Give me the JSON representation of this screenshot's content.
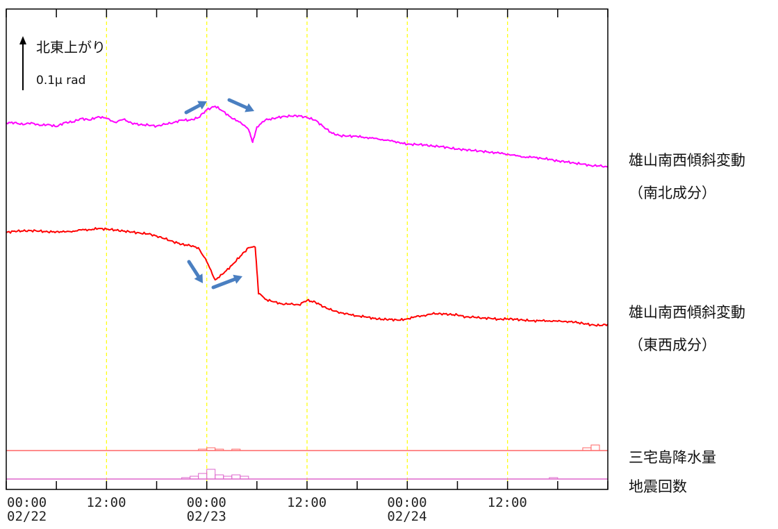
{
  "chart_data": {
    "type": "line",
    "x_unit": "hours",
    "xlim": [
      0,
      72
    ],
    "x_ticks": [
      {
        "x": 0,
        "time": "00:00",
        "date": "02/22"
      },
      {
        "x": 12,
        "time": "12:00",
        "date": ""
      },
      {
        "x": 24,
        "time": "00:00",
        "date": "02/23"
      },
      {
        "x": 36,
        "time": "12:00",
        "date": ""
      },
      {
        "x": 48,
        "time": "00:00",
        "date": "02/24"
      },
      {
        "x": 60,
        "time": "12:00",
        "date": ""
      }
    ],
    "grid_x": [
      12,
      24,
      36,
      48,
      60
    ],
    "minor_ticks_hours": 6,
    "grid_color": "#ffff00",
    "scale_indicator": {
      "direction_label": "北東上がり",
      "magnitude_label": "0.1μ rad"
    },
    "series": [
      {
        "name": "雄山南西傾斜変動",
        "sub_name": "（南北成分）",
        "color": "#ff00ff",
        "points": [
          [
            0,
            -0.49
          ],
          [
            1,
            -0.46
          ],
          [
            2,
            -0.63
          ],
          [
            3,
            -0.46
          ],
          [
            4,
            -0.7
          ],
          [
            5,
            -0.6
          ],
          [
            6,
            -0.78
          ],
          [
            7,
            -0.46
          ],
          [
            8,
            -0.41
          ],
          [
            9,
            -0.14
          ],
          [
            10,
            -0.27
          ],
          [
            11,
            0.0
          ],
          [
            12,
            -0.14
          ],
          [
            13,
            -0.43
          ],
          [
            14,
            -0.22
          ],
          [
            15,
            -0.49
          ],
          [
            16,
            -0.63
          ],
          [
            17,
            -0.66
          ],
          [
            18,
            -0.73
          ],
          [
            19,
            -0.6
          ],
          [
            20,
            -0.46
          ],
          [
            21,
            -0.27
          ],
          [
            22,
            -0.27
          ],
          [
            23,
            -0.08
          ],
          [
            24,
            0.54
          ],
          [
            25,
            0.81
          ],
          [
            26,
            0.41
          ],
          [
            27,
            -0.14
          ],
          [
            28,
            -0.41
          ],
          [
            29,
            -1.0
          ],
          [
            29.5,
            -2.0
          ],
          [
            30,
            -0.8
          ],
          [
            31,
            -0.27
          ],
          [
            32,
            -0.14
          ],
          [
            33,
            0.0
          ],
          [
            34,
            0.03
          ],
          [
            35,
            0.08
          ],
          [
            36,
            -0.08
          ],
          [
            37,
            -0.27
          ],
          [
            38,
            -0.81
          ],
          [
            39,
            -1.3
          ],
          [
            40,
            -1.49
          ],
          [
            41,
            -1.51
          ],
          [
            42,
            -1.54
          ],
          [
            43,
            -1.62
          ],
          [
            44,
            -1.7
          ],
          [
            45,
            -1.78
          ],
          [
            46,
            -1.89
          ],
          [
            47,
            -2.0
          ],
          [
            48,
            -2.16
          ],
          [
            49,
            -2.16
          ],
          [
            50,
            -2.19
          ],
          [
            51,
            -2.3
          ],
          [
            52,
            -2.32
          ],
          [
            53,
            -2.43
          ],
          [
            54,
            -2.54
          ],
          [
            55,
            -2.57
          ],
          [
            56,
            -2.65
          ],
          [
            57,
            -2.7
          ],
          [
            58,
            -2.78
          ],
          [
            59,
            -2.84
          ],
          [
            60,
            -2.92
          ],
          [
            61,
            -3.05
          ],
          [
            62,
            -3.14
          ],
          [
            63,
            -3.16
          ],
          [
            64,
            -3.24
          ],
          [
            65,
            -3.32
          ],
          [
            66,
            -3.46
          ],
          [
            67,
            -3.51
          ],
          [
            68,
            -3.62
          ],
          [
            69,
            -3.7
          ],
          [
            70,
            -3.81
          ],
          [
            71,
            -3.84
          ],
          [
            72,
            -3.92
          ]
        ]
      },
      {
        "name": "雄山南西傾斜変動",
        "sub_name": "（東西成分）",
        "color": "#ff0000",
        "points": [
          [
            0,
            -0.19
          ],
          [
            1,
            -0.11
          ],
          [
            2,
            -0.11
          ],
          [
            3,
            -0.08
          ],
          [
            4,
            -0.11
          ],
          [
            5,
            -0.16
          ],
          [
            6,
            -0.14
          ],
          [
            7,
            -0.16
          ],
          [
            8,
            -0.11
          ],
          [
            9,
            -0.05
          ],
          [
            10,
            -0.03
          ],
          [
            11,
            0.03
          ],
          [
            12,
            0.0
          ],
          [
            13,
            -0.05
          ],
          [
            14,
            -0.11
          ],
          [
            15,
            -0.16
          ],
          [
            16,
            -0.22
          ],
          [
            17,
            -0.27
          ],
          [
            18,
            -0.38
          ],
          [
            19,
            -0.54
          ],
          [
            20,
            -0.7
          ],
          [
            21,
            -0.84
          ],
          [
            22,
            -0.92
          ],
          [
            23,
            -1.03
          ],
          [
            24,
            -1.81
          ],
          [
            25,
            -2.81
          ],
          [
            26,
            -2.46
          ],
          [
            27,
            -2.0
          ],
          [
            28,
            -1.51
          ],
          [
            29,
            -1.03
          ],
          [
            29.8,
            -1.0
          ],
          [
            30.2,
            -3.59
          ],
          [
            31,
            -3.89
          ],
          [
            32,
            -4.03
          ],
          [
            33,
            -4.14
          ],
          [
            34,
            -4.16
          ],
          [
            35,
            -4.19
          ],
          [
            36,
            -3.95
          ],
          [
            37,
            -4.05
          ],
          [
            38,
            -4.3
          ],
          [
            39,
            -4.51
          ],
          [
            40,
            -4.62
          ],
          [
            41,
            -4.73
          ],
          [
            42,
            -4.81
          ],
          [
            43,
            -4.86
          ],
          [
            44,
            -4.95
          ],
          [
            45,
            -5.0
          ],
          [
            46,
            -5.0
          ],
          [
            47,
            -5.05
          ],
          [
            48,
            -4.97
          ],
          [
            49,
            -4.86
          ],
          [
            50,
            -4.78
          ],
          [
            51,
            -4.7
          ],
          [
            52,
            -4.68
          ],
          [
            53,
            -4.73
          ],
          [
            54,
            -4.76
          ],
          [
            55,
            -4.86
          ],
          [
            56,
            -4.89
          ],
          [
            57,
            -4.92
          ],
          [
            58,
            -4.95
          ],
          [
            59,
            -5.0
          ],
          [
            60,
            -4.97
          ],
          [
            61,
            -5.0
          ],
          [
            62,
            -5.05
          ],
          [
            63,
            -5.08
          ],
          [
            64,
            -5.08
          ],
          [
            65,
            -5.08
          ],
          [
            66,
            -5.11
          ],
          [
            67,
            -5.11
          ],
          [
            68,
            -5.16
          ],
          [
            69,
            -5.22
          ],
          [
            70,
            -5.3
          ],
          [
            71,
            -5.35
          ],
          [
            72,
            -5.27
          ]
        ]
      }
    ],
    "bar_series": [
      {
        "name": "三宅島降水量",
        "color": "#ff6666",
        "bars": [
          [
            23,
            1
          ],
          [
            24,
            2
          ],
          [
            25,
            1
          ],
          [
            27,
            1
          ],
          [
            69,
            2
          ],
          [
            70,
            4
          ]
        ]
      },
      {
        "name": "地震回数",
        "color": "#dd66cc",
        "bars": [
          [
            21,
            1
          ],
          [
            22,
            2
          ],
          [
            23,
            4
          ],
          [
            24,
            7
          ],
          [
            25,
            3
          ],
          [
            26,
            2
          ],
          [
            27,
            3
          ],
          [
            28,
            2
          ],
          [
            65,
            1
          ]
        ]
      }
    ],
    "annotation_arrows_color": "#4a7fc1"
  }
}
